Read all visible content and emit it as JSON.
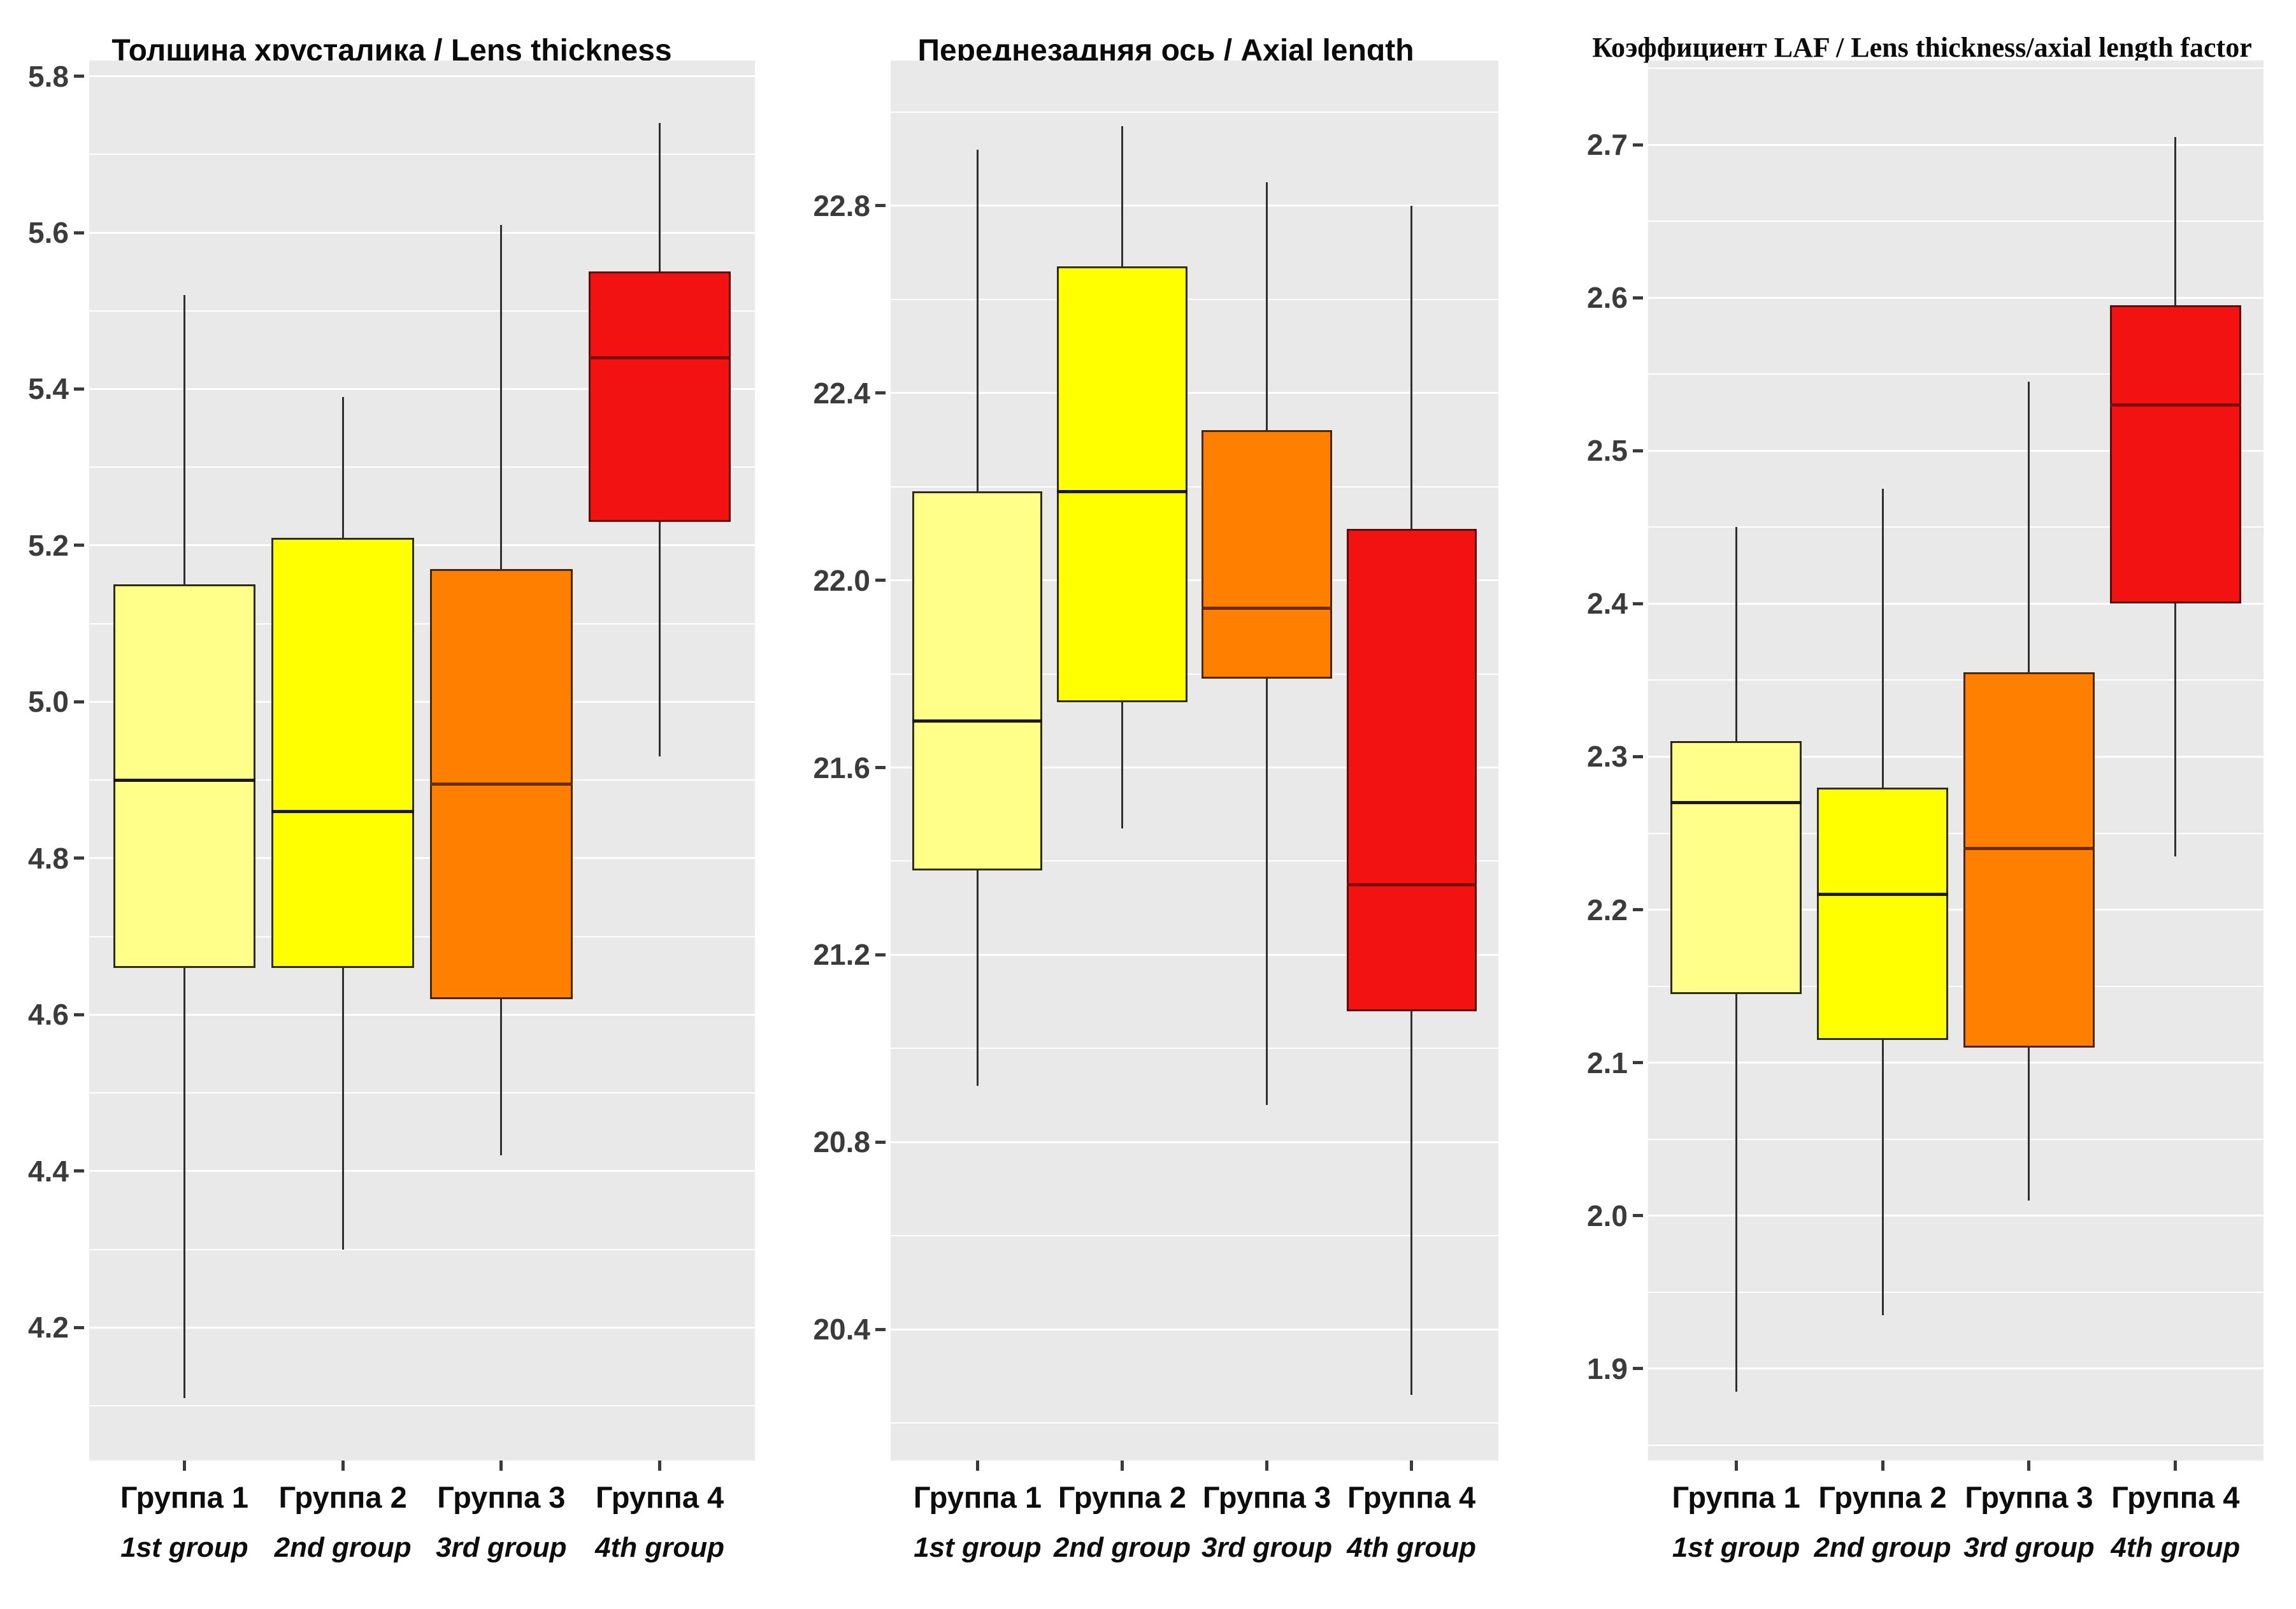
{
  "page": {
    "background": "#ffffff",
    "plot_bg": "#E9E9E9",
    "grid_color": "#ffffff",
    "axis_text_color": "#3b3b3b",
    "whisker_color": "#303030"
  },
  "chart_data": [
    {
      "type": "boxplot",
      "title": "Толщина хрусталика / Lens thickness",
      "ylabel": "",
      "ylim": [
        4.03,
        5.82
      ],
      "grid": true,
      "y_ticks": [
        {
          "value": 5.8,
          "label": "5.8"
        },
        {
          "value": 5.6,
          "label": "5.6"
        },
        {
          "value": 5.4,
          "label": "5.4"
        },
        {
          "value": 5.2,
          "label": "5.2"
        },
        {
          "value": 5.0,
          "label": "5.0"
        },
        {
          "value": 4.8,
          "label": "4.8"
        },
        {
          "value": 4.6,
          "label": "4.6"
        },
        {
          "value": 4.4,
          "label": "4.4"
        },
        {
          "value": 4.2,
          "label": "4.2"
        }
      ],
      "y_minor": [
        5.7,
        5.5,
        5.3,
        5.1,
        4.9,
        4.7,
        4.5,
        4.3,
        4.1
      ],
      "groups": [
        {
          "label_ru": "Группа 1",
          "label_en": "1st group",
          "fill": "#FFFF8A",
          "border": "#2e2e0e",
          "median_color": "#1a1a1a",
          "whisker_low": 4.11,
          "q1": 4.66,
          "median": 4.9,
          "q3": 5.15,
          "whisker_high": 5.52
        },
        {
          "label_ru": "Группа 2",
          "label_en": "2nd group",
          "fill": "#FFFF00",
          "border": "#2e2e0e",
          "median_color": "#1a1a1a",
          "whisker_low": 4.3,
          "q1": 4.66,
          "median": 4.86,
          "q3": 5.21,
          "whisker_high": 5.39
        },
        {
          "label_ru": "Группа 3",
          "label_en": "3rd group",
          "fill": "#FF8000",
          "border": "#4a2500",
          "median_color": "#6b2b00",
          "whisker_low": 4.42,
          "q1": 4.62,
          "median": 4.895,
          "q3": 5.17,
          "whisker_high": 5.61
        },
        {
          "label_ru": "Группа 4",
          "label_en": "4th group",
          "fill": "#F31212",
          "border": "#5a0a0a",
          "median_color": "#7d0c0c",
          "whisker_low": 4.93,
          "q1": 5.23,
          "median": 5.44,
          "q3": 5.55,
          "whisker_high": 5.74
        }
      ]
    },
    {
      "type": "boxplot",
      "title": "Переднезадняя ось / Axial length",
      "ylabel": "",
      "ylim": [
        20.12,
        23.11
      ],
      "grid": true,
      "y_ticks": [
        {
          "value": 22.8,
          "label": "22.8"
        },
        {
          "value": 22.4,
          "label": "22.4"
        },
        {
          "value": 22.0,
          "label": "22.0"
        },
        {
          "value": 21.6,
          "label": "21.6"
        },
        {
          "value": 21.2,
          "label": "21.2"
        },
        {
          "value": 20.8,
          "label": "20.8"
        },
        {
          "value": 20.4,
          "label": "20.4"
        }
      ],
      "y_minor": [
        23.0,
        22.6,
        22.2,
        21.8,
        21.4,
        21.0,
        20.6,
        20.2
      ],
      "groups": [
        {
          "label_ru": "Группа 1",
          "label_en": "1st group",
          "fill": "#FFFF8A",
          "border": "#2e2e0e",
          "median_color": "#1a1a1a",
          "whisker_low": 20.92,
          "q1": 21.38,
          "median": 21.7,
          "q3": 22.19,
          "whisker_high": 22.92
        },
        {
          "label_ru": "Группа 2",
          "label_en": "2nd group",
          "fill": "#FFFF00",
          "border": "#2e2e0e",
          "median_color": "#1a1a1a",
          "whisker_low": 21.47,
          "q1": 21.74,
          "median": 22.19,
          "q3": 22.67,
          "whisker_high": 22.97
        },
        {
          "label_ru": "Группа 3",
          "label_en": "3rd group",
          "fill": "#FF8000",
          "border": "#4a2500",
          "median_color": "#6b2b00",
          "whisker_low": 20.88,
          "q1": 21.79,
          "median": 21.94,
          "q3": 22.32,
          "whisker_high": 22.85
        },
        {
          "label_ru": "Группа 4",
          "label_en": "4th group",
          "fill": "#F31212",
          "border": "#5a0a0a",
          "median_color": "#7d0c0c",
          "whisker_low": 20.26,
          "q1": 21.08,
          "median": 21.35,
          "q3": 22.11,
          "whisker_high": 22.8
        }
      ]
    },
    {
      "type": "boxplot",
      "title": "Коэффициент LAF / Lens thickness/axial length factor",
      "ylabel": "",
      "ylim": [
        1.84,
        2.755
      ],
      "grid": true,
      "y_ticks": [
        {
          "value": 2.7,
          "label": "2.7"
        },
        {
          "value": 2.6,
          "label": "2.6"
        },
        {
          "value": 2.5,
          "label": "2.5"
        },
        {
          "value": 2.4,
          "label": "2.4"
        },
        {
          "value": 2.3,
          "label": "2.3"
        },
        {
          "value": 2.2,
          "label": "2.2"
        },
        {
          "value": 2.1,
          "label": "2.1"
        },
        {
          "value": 2.0,
          "label": "2.0"
        },
        {
          "value": 1.9,
          "label": "1.9"
        }
      ],
      "y_minor": [
        2.75,
        2.65,
        2.55,
        2.45,
        2.35,
        2.25,
        2.15,
        2.05,
        1.95,
        1.85
      ],
      "groups": [
        {
          "label_ru": "Группа 1",
          "label_en": "1st group",
          "fill": "#FFFF8A",
          "border": "#2e2e0e",
          "median_color": "#1a1a1a",
          "whisker_low": 1.885,
          "q1": 2.145,
          "median": 2.27,
          "q3": 2.31,
          "whisker_high": 2.45
        },
        {
          "label_ru": "Группа 2",
          "label_en": "2nd group",
          "fill": "#FFFF00",
          "border": "#2e2e0e",
          "median_color": "#1a1a1a",
          "whisker_low": 1.935,
          "q1": 2.115,
          "median": 2.21,
          "q3": 2.28,
          "whisker_high": 2.475
        },
        {
          "label_ru": "Группа 3",
          "label_en": "3rd group",
          "fill": "#FF8000",
          "border": "#4a2500",
          "median_color": "#6b2b00",
          "whisker_low": 2.01,
          "q1": 2.11,
          "median": 2.24,
          "q3": 2.355,
          "whisker_high": 2.545
        },
        {
          "label_ru": "Группа 4",
          "label_en": "4th group",
          "fill": "#F31212",
          "border": "#5a0a0a",
          "median_color": "#7d0c0c",
          "whisker_low": 2.235,
          "q1": 2.4,
          "median": 2.53,
          "q3": 2.595,
          "whisker_high": 2.705
        }
      ]
    }
  ]
}
